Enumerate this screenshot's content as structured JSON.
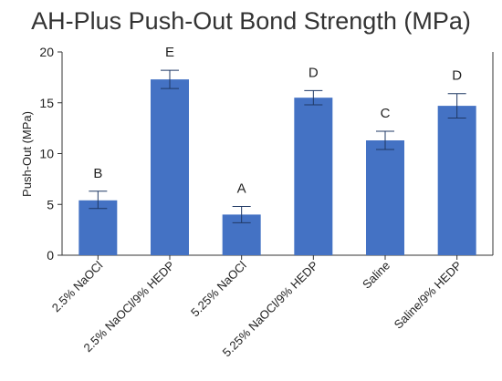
{
  "chart_data": {
    "type": "bar",
    "title": "AH-Plus Push-Out Bond Strength (MPa)",
    "xlabel": "",
    "ylabel": "Push-Out (MPa)",
    "ylim": [
      0,
      20
    ],
    "yticks": [
      0,
      5,
      10,
      15,
      20
    ],
    "grid": false,
    "legend": "none",
    "categories": [
      "2.5% NaOCl",
      "2.5% NaOCl/9% HEDP",
      "5.25% NaOCl",
      "5.25% NaOCl/9% HEDP",
      "Saline",
      "Saline/9% HEDP"
    ],
    "values": [
      5.4,
      17.3,
      4.0,
      15.5,
      11.3,
      14.7
    ],
    "error_low": [
      4.6,
      16.4,
      3.2,
      14.8,
      10.4,
      13.5
    ],
    "error_high": [
      6.3,
      18.2,
      4.8,
      16.2,
      12.2,
      15.9
    ],
    "group_letters": [
      "B",
      "E",
      "A",
      "D",
      "C",
      "D"
    ],
    "colors": {
      "bar": "#4472C4",
      "error_bar": "#1F3864",
      "axis": "#333333"
    }
  }
}
